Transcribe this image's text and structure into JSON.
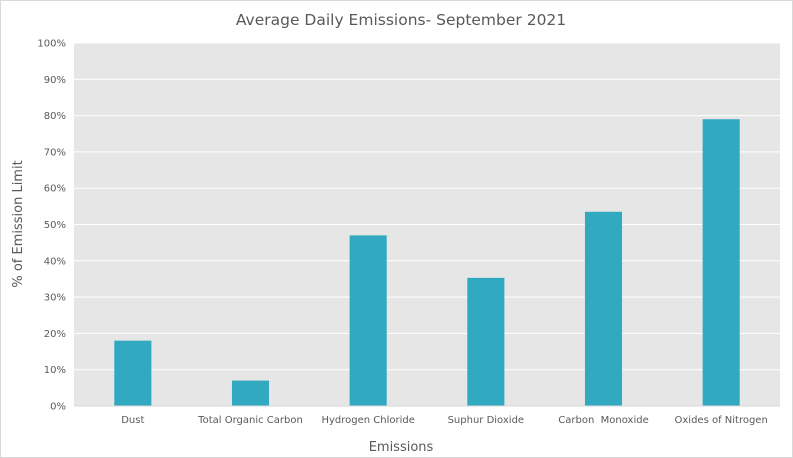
{
  "chart_data": {
    "type": "bar",
    "title": "Average Daily Emissions- September 2021",
    "xlabel": "Emissions",
    "ylabel": "% of Emission Limit",
    "categories": [
      "Dust",
      "Total Organic Carbon",
      "Hydrogen Chloride",
      "Suphur Dioxide",
      "Carbon  Monoxide",
      "Oxides of Nitrogen"
    ],
    "values": [
      18,
      7,
      47,
      35.3,
      53.5,
      79
    ],
    "ylim": [
      0,
      100
    ],
    "yticks": [
      "0%",
      "10%",
      "20%",
      "30%",
      "40%",
      "50%",
      "60%",
      "70%",
      "80%",
      "90%",
      "100%"
    ],
    "grid": true,
    "legend": "none",
    "colors": {
      "bar": "#31a9c1",
      "plot_background": "#e6e6e6",
      "gridline": "#ffffff",
      "text": "#595959"
    }
  }
}
